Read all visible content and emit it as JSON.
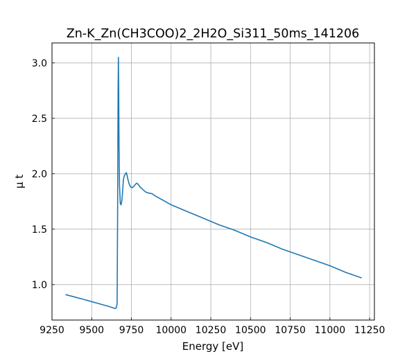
{
  "chart_data": {
    "type": "line",
    "title": "Zn-K_Zn(CH3COO)2_2H2O_Si311_50ms_141206",
    "xlabel": "Energy [eV]",
    "ylabel": "μ t",
    "xlim": [
      9250,
      11280
    ],
    "ylim": [
      0.68,
      3.18
    ],
    "xticks": [
      9250,
      9500,
      9750,
      10000,
      10250,
      10500,
      10750,
      11000,
      11250
    ],
    "yticks": [
      1.0,
      1.5,
      2.0,
      2.5,
      3.0
    ],
    "ytick_labels": [
      "1.0",
      "1.5",
      "2.0",
      "2.5",
      "3.0"
    ],
    "grid": true,
    "line_color": "#1f77b4",
    "series": [
      {
        "x": [
          9335,
          9400,
          9450,
          9500,
          9550,
          9600,
          9620,
          9635,
          9645,
          9650,
          9655,
          9660,
          9663,
          9666,
          9668,
          9670,
          9672,
          9675,
          9680,
          9685,
          9690,
          9695,
          9700,
          9705,
          9712,
          9718,
          9722,
          9728,
          9735,
          9745,
          9755,
          9765,
          9775,
          9785,
          9795,
          9805,
          9820,
          9840,
          9860,
          9880,
          9900,
          9950,
          10000,
          10100,
          10200,
          10300,
          10400,
          10500,
          10600,
          10700,
          10800,
          10900,
          11000,
          11100,
          11200
        ],
        "y": [
          0.91,
          0.885,
          0.866,
          0.846,
          0.826,
          0.806,
          0.797,
          0.79,
          0.785,
          0.785,
          0.79,
          0.83,
          1.6,
          2.7,
          3.05,
          2.75,
          2.25,
          1.9,
          1.73,
          1.72,
          1.76,
          1.85,
          1.95,
          1.98,
          2.0,
          2.01,
          1.99,
          1.95,
          1.91,
          1.88,
          1.875,
          1.885,
          1.905,
          1.915,
          1.9,
          1.88,
          1.86,
          1.835,
          1.825,
          1.82,
          1.8,
          1.76,
          1.72,
          1.66,
          1.6,
          1.54,
          1.49,
          1.43,
          1.38,
          1.32,
          1.27,
          1.22,
          1.17,
          1.11,
          1.06
        ]
      }
    ]
  }
}
